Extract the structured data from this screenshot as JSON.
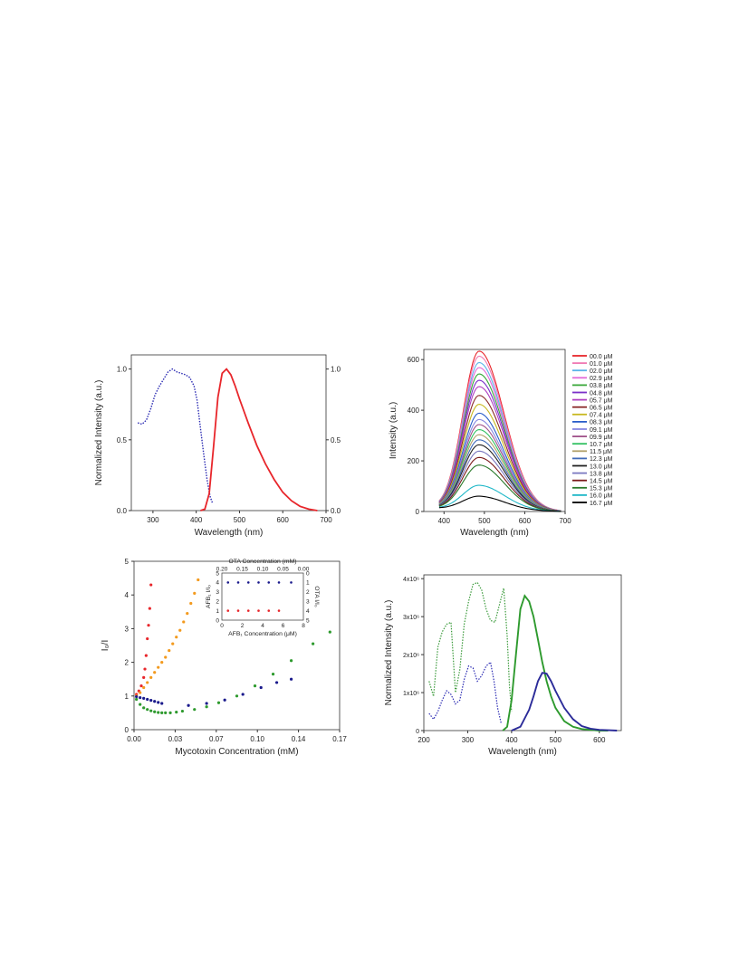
{
  "colors": {
    "red": "#e8262b",
    "navy": "#1a1a8c",
    "blue_dotted": "#2b2bb3",
    "green": "#2e9a2e",
    "orange": "#f39a1e",
    "dark_green": "#1c7a1c"
  },
  "chart_data": [
    {
      "id": "panel-a",
      "type": "line",
      "xlabel": "Wavelength (nm)",
      "ylabel": "Normalized Intensity (a.u.)",
      "xlim": [
        250,
        700
      ],
      "ylim": [
        0,
        1.1
      ],
      "xticks": [
        "300",
        "400",
        "500",
        "600",
        "700"
      ],
      "yticks": [
        "0.0",
        "0.5",
        "1.0"
      ],
      "right_yticks": [
        "0.0",
        "0.5",
        "1.0"
      ],
      "series": [
        {
          "style": "dotted",
          "color": "#2b2bb3",
          "x": [
            265,
            275,
            285,
            295,
            305,
            315,
            325,
            335,
            345,
            355,
            365,
            375,
            385,
            395,
            402,
            410,
            418,
            425,
            432,
            438
          ],
          "y": [
            0.62,
            0.61,
            0.64,
            0.72,
            0.82,
            0.88,
            0.93,
            0.98,
            1.0,
            0.98,
            0.97,
            0.96,
            0.94,
            0.88,
            0.78,
            0.58,
            0.38,
            0.22,
            0.1,
            0.05
          ]
        },
        {
          "style": "solid",
          "color": "#e8262b",
          "x": [
            410,
            420,
            430,
            440,
            450,
            460,
            470,
            480,
            490,
            500,
            520,
            540,
            560,
            580,
            600,
            620,
            640,
            660,
            680
          ],
          "y": [
            0.0,
            0.01,
            0.12,
            0.45,
            0.8,
            0.97,
            1.0,
            0.96,
            0.88,
            0.79,
            0.62,
            0.46,
            0.33,
            0.22,
            0.13,
            0.07,
            0.03,
            0.01,
            0.0
          ]
        }
      ]
    },
    {
      "id": "panel-b",
      "type": "line",
      "xlabel": "Wavelength (nm)",
      "ylabel": "Intensity (a.u.)",
      "xlim": [
        350,
        700
      ],
      "ylim": [
        0,
        640
      ],
      "xticks": [
        "400",
        "500",
        "600",
        "700"
      ],
      "yticks": [
        "0",
        "200",
        "400",
        "600"
      ],
      "legend_position": "right",
      "peak_x": 487,
      "series": [
        {
          "name": "00.0  μM",
          "color": "#e8262b",
          "peak": 625
        },
        {
          "name": "01.0  μM",
          "color": "#f07ab3",
          "peak": 605
        },
        {
          "name": "02.0  μM",
          "color": "#5ab4e8",
          "peak": 580
        },
        {
          "name": "02.9  μM",
          "color": "#e26ad8",
          "peak": 560
        },
        {
          "name": "03.8  μM",
          "color": "#3aa83a",
          "peak": 535
        },
        {
          "name": "04.8  μM",
          "color": "#7a30c9",
          "peak": 510
        },
        {
          "name": "05.7  μM",
          "color": "#b040c0",
          "peak": 485
        },
        {
          "name": "06.5  μM",
          "color": "#8a2a2a",
          "peak": 450
        },
        {
          "name": "07.4  μM",
          "color": "#c8b820",
          "peak": 415
        },
        {
          "name": "08.3  μM",
          "color": "#2a5ec9",
          "peak": 380
        },
        {
          "name": "09.1  μM",
          "color": "#8888e0",
          "peak": 355
        },
        {
          "name": "09.9  μM",
          "color": "#a0528a",
          "peak": 335
        },
        {
          "name": "10.7  μM",
          "color": "#30c060",
          "peak": 315
        },
        {
          "name": "11.5  μM",
          "color": "#b0a06a",
          "peak": 295
        },
        {
          "name": "12.3  μM",
          "color": "#3f6ab8",
          "peak": 275
        },
        {
          "name": "13.0  μM",
          "color": "#222222",
          "peak": 255
        },
        {
          "name": "13.8  μM",
          "color": "#7a78c0",
          "peak": 230
        },
        {
          "name": "14.5  μM",
          "color": "#7a1a1a",
          "peak": 205
        },
        {
          "name": "15.3  μM",
          "color": "#2a7a2a",
          "peak": 175
        },
        {
          "name": "16.0  μM",
          "color": "#20b8c8",
          "peak": 95
        },
        {
          "name": "16.7  μM",
          "color": "#000000",
          "peak": 52
        }
      ]
    },
    {
      "id": "panel-c",
      "type": "scatter",
      "xlabel": "Mycotoxin Concentration (mM)",
      "ylabel": "I₀/I",
      "xlim": [
        0,
        0.17
      ],
      "ylim": [
        0,
        5
      ],
      "xticks": [
        "0.00",
        "0.03",
        "0.07",
        "0.10",
        "0.14",
        "0.17"
      ],
      "yticks": [
        "0",
        "1",
        "2",
        "3",
        "4",
        "5"
      ],
      "series": [
        {
          "color": "#e8262b",
          "x": [
            0.002,
            0.004,
            0.006,
            0.008,
            0.009,
            0.01,
            0.011,
            0.012,
            0.013,
            0.014
          ],
          "y": [
            1.05,
            1.15,
            1.3,
            1.55,
            1.8,
            2.2,
            2.7,
            3.1,
            3.6,
            4.3
          ]
        },
        {
          "color": "#f39a1e",
          "x": [
            0.002,
            0.005,
            0.008,
            0.011,
            0.014,
            0.017,
            0.02,
            0.023,
            0.026,
            0.029,
            0.032,
            0.035,
            0.038,
            0.041,
            0.044,
            0.047,
            0.05,
            0.053
          ],
          "y": [
            1.0,
            1.1,
            1.25,
            1.4,
            1.55,
            1.7,
            1.85,
            2.0,
            2.15,
            2.35,
            2.55,
            2.75,
            2.95,
            3.2,
            3.45,
            3.75,
            4.05,
            4.45
          ]
        },
        {
          "color": "#1a1a8c",
          "x": [
            0.002,
            0.005,
            0.008,
            0.011,
            0.014,
            0.017,
            0.02,
            0.023,
            0.045,
            0.06,
            0.075,
            0.09,
            0.105,
            0.118,
            0.13
          ],
          "y": [
            0.98,
            0.95,
            0.93,
            0.9,
            0.87,
            0.84,
            0.81,
            0.78,
            0.72,
            0.78,
            0.88,
            1.05,
            1.25,
            1.4,
            1.5
          ]
        },
        {
          "color": "#2e9a2e",
          "x": [
            0.002,
            0.005,
            0.008,
            0.011,
            0.014,
            0.017,
            0.02,
            0.023,
            0.026,
            0.03,
            0.035,
            0.04,
            0.05,
            0.06,
            0.07,
            0.085,
            0.1,
            0.115,
            0.13,
            0.148,
            0.162
          ],
          "y": [
            0.9,
            0.75,
            0.65,
            0.6,
            0.56,
            0.53,
            0.51,
            0.5,
            0.5,
            0.5,
            0.52,
            0.55,
            0.6,
            0.68,
            0.8,
            1.0,
            1.3,
            1.65,
            2.05,
            2.55,
            2.9
          ]
        }
      ],
      "inset": {
        "top_xlabel": "OTA Concentration (mM)",
        "bottom_xlabel": "AFB₁ Concentration (μM)",
        "left_ylabel": "AFB₁ I/I₀",
        "right_ylabel": "OTA I/I₀",
        "top_xticks": [
          "0.20",
          "0.15",
          "0.10",
          "0.05",
          "0.00"
        ],
        "bottom_xticks": [
          "0",
          "2",
          "4",
          "6",
          "8"
        ],
        "left_yticks": [
          "0",
          "1",
          "2",
          "3",
          "4",
          "5"
        ],
        "right_yticks": [
          "0",
          "1",
          "2",
          "3",
          "4",
          "5"
        ],
        "blue_points": {
          "x": [
            0.6,
            1.6,
            2.6,
            3.6,
            4.6,
            5.6,
            6.8
          ],
          "y": [
            4.0,
            4.0,
            4.0,
            4.0,
            4.0,
            4.0,
            4.0
          ]
        },
        "red_points": {
          "x": [
            0.6,
            1.6,
            2.6,
            3.6,
            4.6,
            5.6
          ],
          "y": [
            1.0,
            1.0,
            1.0,
            1.0,
            1.0,
            1.0
          ]
        }
      }
    },
    {
      "id": "panel-d",
      "type": "line",
      "xlabel": "Wavelength (nm)",
      "ylabel": "Normalized Intensity (a.u.)",
      "xlim": [
        200,
        650
      ],
      "ylim": [
        0,
        4.1
      ],
      "xticks": [
        "200",
        "300",
        "400",
        "500",
        "600"
      ],
      "yticks": [
        "0",
        "1x10⁶",
        "2x10⁶",
        "3x10⁶",
        "4x10⁶"
      ],
      "series": [
        {
          "style": "dotted",
          "color": "#3a9a3a",
          "x": [
            212,
            222,
            232,
            242,
            252,
            262,
            272,
            282,
            292,
            302,
            312,
            322,
            332,
            342,
            352,
            362,
            372,
            382,
            390,
            395,
            400
          ],
          "y": [
            1.3,
            0.9,
            2.2,
            2.6,
            2.8,
            2.85,
            1.0,
            1.6,
            2.8,
            3.4,
            3.85,
            3.9,
            3.7,
            3.2,
            2.9,
            2.85,
            3.3,
            3.75,
            2.5,
            1.2,
            0.5
          ]
        },
        {
          "style": "dotted",
          "color": "#2b2bb3",
          "x": [
            212,
            222,
            232,
            242,
            252,
            262,
            272,
            282,
            292,
            302,
            312,
            322,
            332,
            342,
            352,
            360,
            368,
            376
          ],
          "y": [
            0.45,
            0.3,
            0.5,
            0.8,
            1.05,
            0.95,
            0.7,
            0.8,
            1.35,
            1.7,
            1.65,
            1.3,
            1.45,
            1.7,
            1.8,
            1.3,
            0.6,
            0.2
          ]
        },
        {
          "style": "solid",
          "color": "#2e9a2e",
          "x": [
            380,
            390,
            400,
            410,
            420,
            430,
            440,
            450,
            460,
            470,
            480,
            490,
            500,
            520,
            540,
            560,
            580,
            600,
            620
          ],
          "y": [
            0.0,
            0.1,
            0.8,
            2.0,
            3.2,
            3.55,
            3.4,
            3.0,
            2.4,
            1.8,
            1.3,
            0.9,
            0.6,
            0.25,
            0.1,
            0.04,
            0.02,
            0.0,
            0.0
          ]
        },
        {
          "style": "solid",
          "color": "#2b2b99",
          "x": [
            400,
            420,
            440,
            450,
            460,
            470,
            480,
            490,
            500,
            520,
            540,
            560,
            580,
            600,
            620,
            640
          ],
          "y": [
            0.0,
            0.1,
            0.55,
            0.9,
            1.3,
            1.52,
            1.5,
            1.3,
            1.05,
            0.6,
            0.3,
            0.12,
            0.05,
            0.02,
            0.01,
            0.0
          ]
        }
      ]
    }
  ]
}
